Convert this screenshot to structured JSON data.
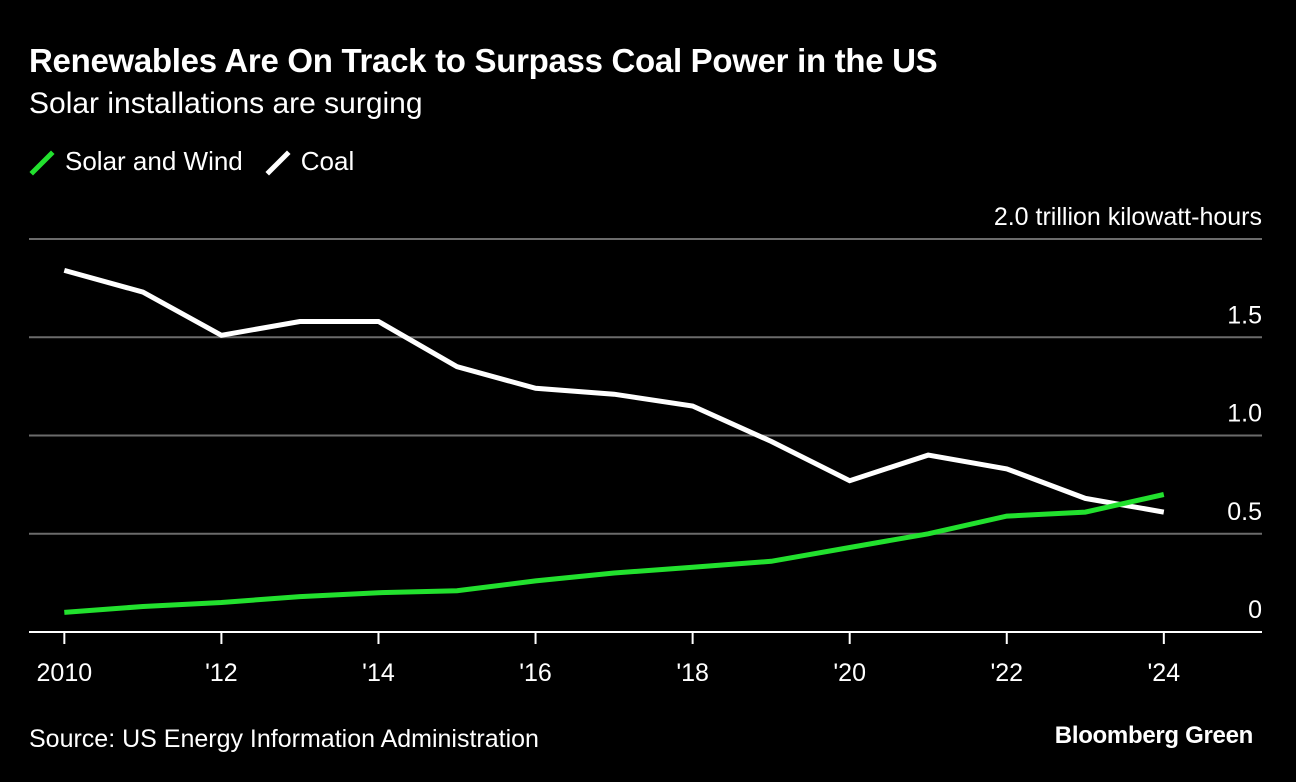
{
  "header": {
    "title": "Renewables Are On Track to Surpass Coal Power in the US",
    "subtitle": "Solar installations are surging"
  },
  "footer": {
    "source": "Source: US Energy Information Administration",
    "brand": "Bloomberg Green"
  },
  "colors": {
    "background": "#000000",
    "solar_wind": "#22e12e",
    "coal": "#ffffff",
    "grid": "#6b6b6b"
  },
  "chart_data": {
    "type": "line",
    "x": [
      2010,
      2011,
      2012,
      2013,
      2014,
      2015,
      2016,
      2017,
      2018,
      2019,
      2020,
      2021,
      2022,
      2023,
      2024
    ],
    "series": [
      {
        "name": "Solar and Wind",
        "color": "#22e12e",
        "values": [
          0.1,
          0.13,
          0.15,
          0.18,
          0.2,
          0.21,
          0.26,
          0.3,
          0.33,
          0.36,
          0.43,
          0.5,
          0.59,
          0.61,
          0.7
        ]
      },
      {
        "name": "Coal",
        "color": "#ffffff",
        "values": [
          1.84,
          1.73,
          1.51,
          1.58,
          1.58,
          1.35,
          1.24,
          1.21,
          1.15,
          0.97,
          0.77,
          0.9,
          0.83,
          0.68,
          0.61
        ]
      }
    ],
    "y_ticks": [
      {
        "value": 2.0,
        "label": "2.0 trillion kilowatt-hours"
      },
      {
        "value": 1.5,
        "label": "1.5"
      },
      {
        "value": 1.0,
        "label": "1.0"
      },
      {
        "value": 0.5,
        "label": "0.5"
      },
      {
        "value": 0,
        "label": "0"
      }
    ],
    "x_ticks": [
      {
        "value": 2010,
        "label": "2010"
      },
      {
        "value": 2012,
        "label": "'12"
      },
      {
        "value": 2014,
        "label": "'14"
      },
      {
        "value": 2016,
        "label": "'16"
      },
      {
        "value": 2018,
        "label": "'18"
      },
      {
        "value": 2020,
        "label": "'20"
      },
      {
        "value": 2022,
        "label": "'22"
      },
      {
        "value": 2024,
        "label": "'24"
      }
    ],
    "xlim": [
      2009.55,
      2025.25
    ],
    "ylim": [
      0,
      2.0
    ],
    "grid": true,
    "legend_position": "top-left"
  }
}
